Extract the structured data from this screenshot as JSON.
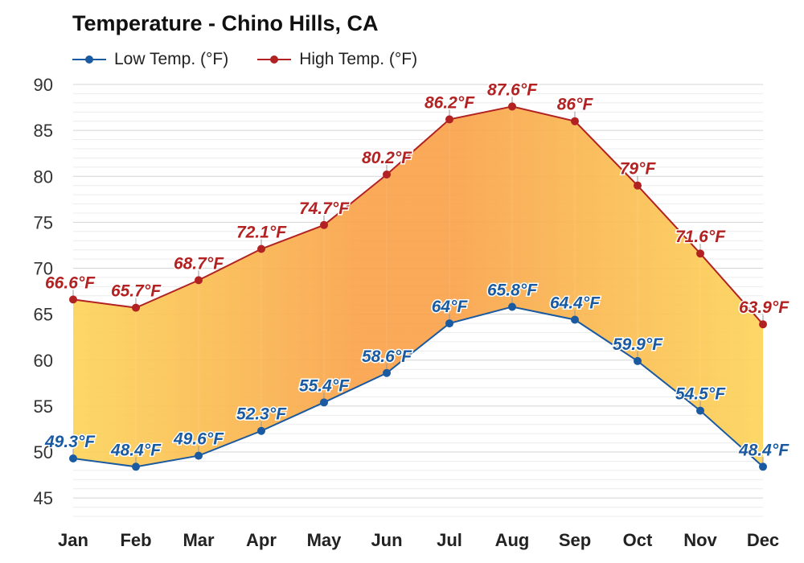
{
  "title": "Temperature - Chino Hills, CA",
  "legend": {
    "low_label": "Low Temp. (°F)",
    "high_label": "High Temp. (°F)"
  },
  "colors": {
    "low": "#1a5aa0",
    "high": "#b22222",
    "fill_warm": "#f9a24a",
    "fill_cool": "#fcd45a"
  },
  "chart_data": {
    "type": "area",
    "categories": [
      "Jan",
      "Feb",
      "Mar",
      "Apr",
      "May",
      "Jun",
      "Jul",
      "Aug",
      "Sep",
      "Oct",
      "Nov",
      "Dec"
    ],
    "series": [
      {
        "name": "Low Temp. (°F)",
        "values": [
          49.3,
          48.4,
          49.6,
          52.3,
          55.4,
          58.6,
          64,
          65.8,
          64.4,
          59.9,
          54.5,
          48.4
        ],
        "labels": [
          "49.3°F",
          "48.4°F",
          "49.6°F",
          "52.3°F",
          "55.4°F",
          "58.6°F",
          "64°F",
          "65.8°F",
          "64.4°F",
          "59.9°F",
          "54.5°F",
          "48.4°F"
        ]
      },
      {
        "name": "High Temp. (°F)",
        "values": [
          66.6,
          65.7,
          68.7,
          72.1,
          74.7,
          80.2,
          86.2,
          87.6,
          86,
          79,
          71.6,
          63.9
        ],
        "labels": [
          "66.6°F",
          "65.7°F",
          "68.7°F",
          "72.1°F",
          "74.7°F",
          "80.2°F",
          "86.2°F",
          "87.6°F",
          "86°F",
          "79°F",
          "71.6°F",
          "63.9°F"
        ]
      }
    ],
    "ylim": [
      43,
      90
    ],
    "yticks": [
      45,
      50,
      55,
      60,
      65,
      70,
      75,
      80,
      85,
      90
    ],
    "ytick_labels": [
      "45",
      "50",
      "55",
      "60",
      "65",
      "70",
      "75",
      "80",
      "85",
      "90"
    ],
    "grid": true,
    "legend_position": "top-left"
  }
}
